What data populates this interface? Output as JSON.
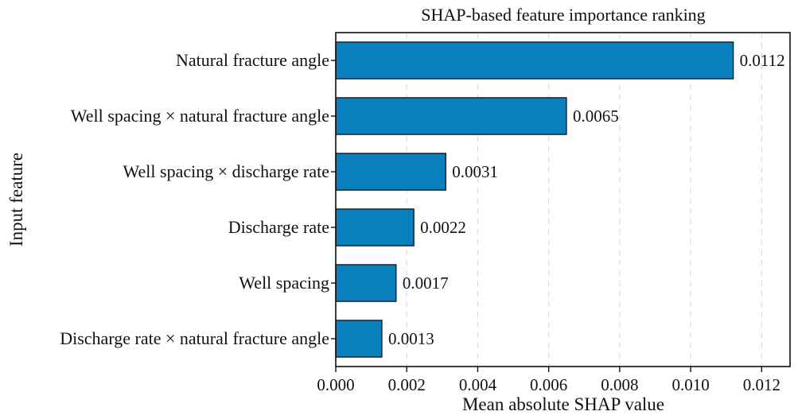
{
  "chart_data": {
    "type": "bar",
    "orientation": "horizontal",
    "title": "SHAP-based feature importance ranking",
    "xlabel": "Mean absolute SHAP value",
    "ylabel": "Input feature",
    "xlim": [
      0,
      0.0128
    ],
    "x_ticks": [
      0.0,
      0.002,
      0.004,
      0.006,
      0.008,
      0.01,
      0.012
    ],
    "x_tick_labels": [
      "0.000",
      "0.002",
      "0.004",
      "0.006",
      "0.008",
      "0.010",
      "0.012"
    ],
    "categories": [
      "Natural fracture angle",
      "Well spacing × natural fracture angle",
      "Well spacing × discharge rate",
      "Discharge rate",
      "Well spacing",
      "Discharge rate × natural fracture angle"
    ],
    "values": [
      0.0112,
      0.0065,
      0.0031,
      0.0022,
      0.0017,
      0.0013
    ],
    "value_labels": [
      "0.0112",
      "0.0065",
      "0.0031",
      "0.0022",
      "0.0017",
      "0.0013"
    ],
    "bar_color": "#0a7fbd",
    "bar_edge_color": "#111111",
    "grid": {
      "x": true,
      "style": "dashed"
    }
  }
}
